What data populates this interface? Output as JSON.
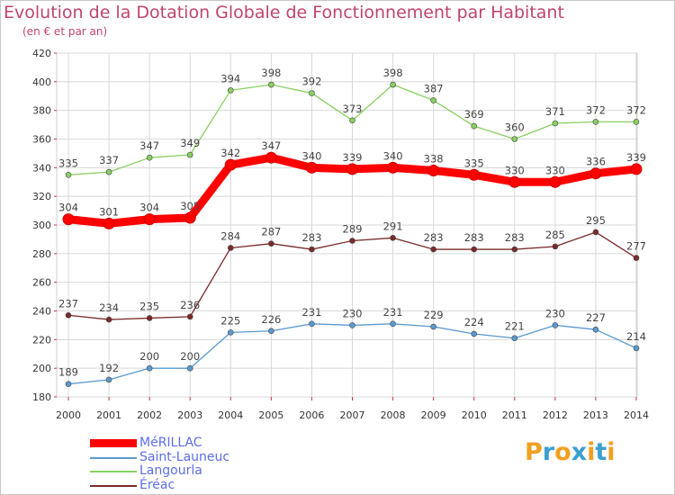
{
  "title": "Evolution de la Dotation Globale de Fonctionnement par Habitant",
  "subtitle": "(en € et par an)",
  "logo": {
    "letters": [
      "P",
      "r",
      "o",
      "x",
      "i",
      "t",
      "i"
    ],
    "colors": [
      "#f0a020",
      "#3aa0d0",
      "#f0a020",
      "#3aa0d0",
      "#f0a020",
      "#3aa0d0",
      "#f0a020"
    ]
  },
  "chart_data": {
    "type": "line",
    "x": [
      "2000",
      "2001",
      "2002",
      "2003",
      "2004",
      "2005",
      "2006",
      "2007",
      "2008",
      "2009",
      "2010",
      "2011",
      "2012",
      "2013",
      "2014"
    ],
    "ylim": [
      180,
      420
    ],
    "yticks": [
      180,
      200,
      220,
      240,
      260,
      280,
      300,
      320,
      340,
      360,
      380,
      400,
      420
    ],
    "grid": true,
    "legend_position": "bottom-left",
    "series": [
      {
        "name": "MéRILLAC",
        "color": "#ff0000",
        "values": [
          304,
          301,
          304,
          305,
          342,
          347,
          340,
          339,
          340,
          338,
          335,
          330,
          330,
          336,
          339
        ]
      },
      {
        "name": "Saint-Launeuc",
        "color": "#5a9ad0",
        "values": [
          189,
          192,
          200,
          200,
          225,
          226,
          231,
          230,
          231,
          229,
          224,
          221,
          230,
          227,
          214
        ]
      },
      {
        "name": "Langourla",
        "color": "#88d060",
        "values": [
          335,
          337,
          347,
          349,
          394,
          398,
          392,
          373,
          398,
          387,
          369,
          360,
          371,
          372,
          372
        ]
      },
      {
        "name": "Éréac",
        "color": "#7a2a2a",
        "values": [
          237,
          234,
          235,
          236,
          284,
          287,
          283,
          289,
          291,
          283,
          283,
          283,
          285,
          295,
          277
        ]
      }
    ]
  }
}
